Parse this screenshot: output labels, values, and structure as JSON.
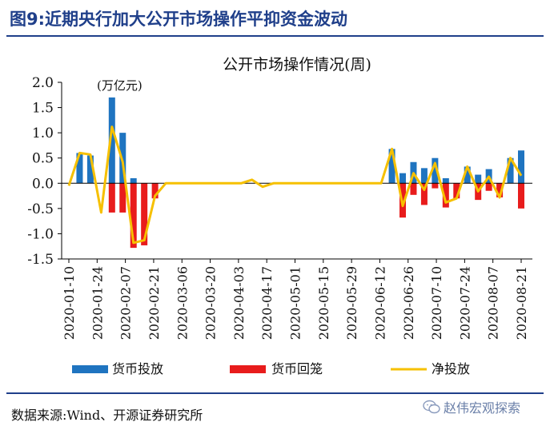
{
  "figure": {
    "label": "图9:",
    "title": "近期央行加大公开市场操作平抑资金波动"
  },
  "colors": {
    "title": "#1f3f8a",
    "supply": "#1f74c0",
    "withdraw": "#e81c1c",
    "net": "#f6c000"
  },
  "chart_data": {
    "type": "bar",
    "title": "公开市场操作情况(周)",
    "unit_label": "(万亿元)",
    "ylim": [
      -1.5,
      2.0
    ],
    "yticks": [
      "2.0",
      "1.5",
      "1.0",
      "0.5",
      "0.0",
      "-0.5",
      "-1.0",
      "-1.5"
    ],
    "xtick_labels": [
      "2020-01-10",
      "2020-01-24",
      "2020-02-07",
      "2020-02-21",
      "2020-03-06",
      "2020-03-20",
      "2020-04-03",
      "2020-04-17",
      "2020-05-01",
      "2020-05-15",
      "2020-05-29",
      "2020-06-12",
      "2020-06-26",
      "2020-07-10",
      "2020-07-24",
      "2020-08-07",
      "2020-08-21"
    ],
    "legend_position": "bottom",
    "series": [
      {
        "name": "货币投放",
        "kind": "bar",
        "color": "#1f74c0",
        "values": [
          0.0,
          0.6,
          0.55,
          0.0,
          1.7,
          1.0,
          0.1,
          0.0,
          0.0,
          0.0,
          0.0,
          0.0,
          0.0,
          0.0,
          0.0,
          0.0,
          0.0,
          0.0,
          0.0,
          0.0,
          0.0,
          0.0,
          0.0,
          0.0,
          0.0,
          0.0,
          0.0,
          0.0,
          0.0,
          0.0,
          0.68,
          0.2,
          0.42,
          0.3,
          0.5,
          0.1,
          0.0,
          0.33,
          0.17,
          0.28,
          0.0,
          0.5,
          0.65
        ]
      },
      {
        "name": "货币回笼",
        "kind": "bar",
        "color": "#e81c1c",
        "values": [
          0.0,
          0.0,
          0.0,
          0.0,
          -0.58,
          -0.58,
          -1.28,
          -1.23,
          -0.3,
          0.0,
          0.0,
          0.0,
          0.0,
          0.0,
          0.0,
          0.0,
          0.0,
          0.0,
          0.0,
          0.0,
          0.0,
          0.0,
          0.0,
          0.0,
          0.0,
          0.0,
          0.0,
          0.0,
          0.0,
          0.0,
          0.0,
          -0.68,
          -0.23,
          -0.43,
          -0.1,
          -0.48,
          -0.3,
          0.0,
          -0.33,
          -0.15,
          -0.28,
          0.0,
          -0.5
        ]
      },
      {
        "name": "净投放",
        "kind": "line",
        "color": "#f6c000",
        "values": [
          -0.05,
          0.6,
          0.57,
          -0.58,
          1.12,
          0.42,
          -1.18,
          -1.13,
          -0.25,
          0.0,
          0.0,
          0.0,
          0.0,
          0.0,
          0.0,
          0.0,
          0.0,
          0.07,
          -0.07,
          0.0,
          0.0,
          0.0,
          0.0,
          0.0,
          0.0,
          0.0,
          0.0,
          0.0,
          0.0,
          0.0,
          0.68,
          -0.45,
          0.2,
          -0.13,
          0.4,
          -0.38,
          -0.3,
          0.33,
          -0.16,
          0.13,
          -0.28,
          0.5,
          0.15
        ]
      }
    ]
  },
  "footer": {
    "source": "数据来源:Wind、开源证券研究所"
  },
  "watermark": {
    "text": "赵伟宏观探索"
  }
}
